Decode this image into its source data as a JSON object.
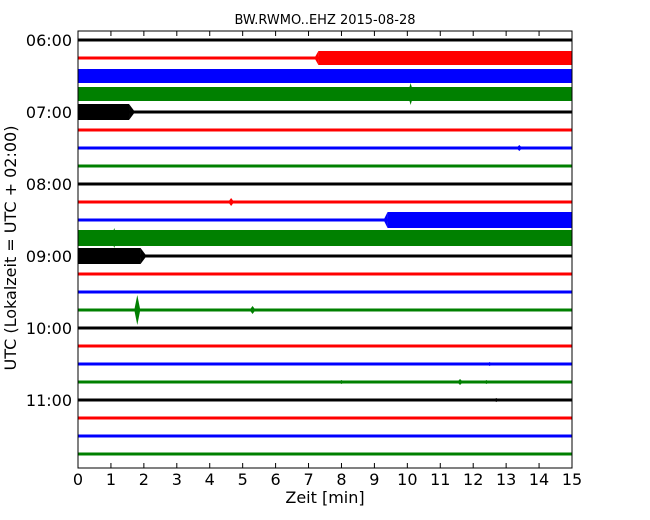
{
  "chart_data": {
    "type": "line",
    "title": "BW.RWMO..EHZ 2015-08-28",
    "xlabel": "Zeit  [min]",
    "ylabel": "UTC (Lokalzeit = UTC + 02:00)",
    "xlim": [
      0,
      15
    ],
    "x_ticks": [
      0,
      1,
      2,
      3,
      4,
      5,
      6,
      7,
      8,
      9,
      10,
      11,
      12,
      13,
      14,
      15
    ],
    "y_tick_labels": [
      "06:00",
      "07:00",
      "08:00",
      "09:00",
      "10:00",
      "11:00"
    ],
    "y_tick_rows": [
      0,
      4,
      8,
      12,
      16,
      20
    ],
    "trace_colors": [
      "#000000",
      "#ff0000",
      "#0000ff",
      "#008000"
    ],
    "traces": [
      {
        "segments": []
      },
      {
        "segments": [
          {
            "start": 7.3,
            "end": 15,
            "amp": 7
          }
        ]
      },
      {
        "segments": [
          {
            "start": 0,
            "end": 15,
            "amp": 7
          }
        ]
      },
      {
        "segments": [
          {
            "start": 0,
            "end": 15,
            "amp": 7
          }
        ],
        "spikes": [
          {
            "t": 10.1,
            "amp": 11
          }
        ]
      },
      {
        "segments": [
          {
            "start": 0,
            "end": 1.55,
            "amp": 8
          }
        ]
      },
      {
        "segments": []
      },
      {
        "segments": [],
        "spikes": [
          {
            "t": 13.4,
            "amp": 3
          }
        ]
      },
      {
        "segments": []
      },
      {
        "segments": []
      },
      {
        "segments": [],
        "spikes": [
          {
            "t": 4.65,
            "amp": 4
          }
        ]
      },
      {
        "segments": [
          {
            "start": 9.4,
            "end": 15,
            "amp": 8
          }
        ]
      },
      {
        "segments": [
          {
            "start": 0,
            "end": 15,
            "amp": 8
          }
        ],
        "spikes": [
          {
            "t": 1.1,
            "amp": 10
          }
        ]
      },
      {
        "segments": [
          {
            "start": 0,
            "end": 1.9,
            "amp": 8
          }
        ]
      },
      {
        "segments": []
      },
      {
        "segments": []
      },
      {
        "segments": [],
        "spikes": [
          {
            "t": 1.8,
            "amp": 15
          },
          {
            "t": 5.3,
            "amp": 4
          }
        ]
      },
      {
        "segments": []
      },
      {
        "segments": []
      },
      {
        "segments": [],
        "spikes": [
          {
            "t": 12.5,
            "amp": 2
          }
        ]
      },
      {
        "segments": [],
        "spikes": [
          {
            "t": 8.0,
            "amp": 2
          },
          {
            "t": 11.6,
            "amp": 3
          },
          {
            "t": 12.4,
            "amp": 2
          }
        ]
      },
      {
        "segments": [],
        "spikes": [
          {
            "t": 12.7,
            "amp": 2
          }
        ]
      },
      {
        "segments": []
      },
      {
        "segments": []
      },
      {
        "segments": []
      }
    ]
  }
}
